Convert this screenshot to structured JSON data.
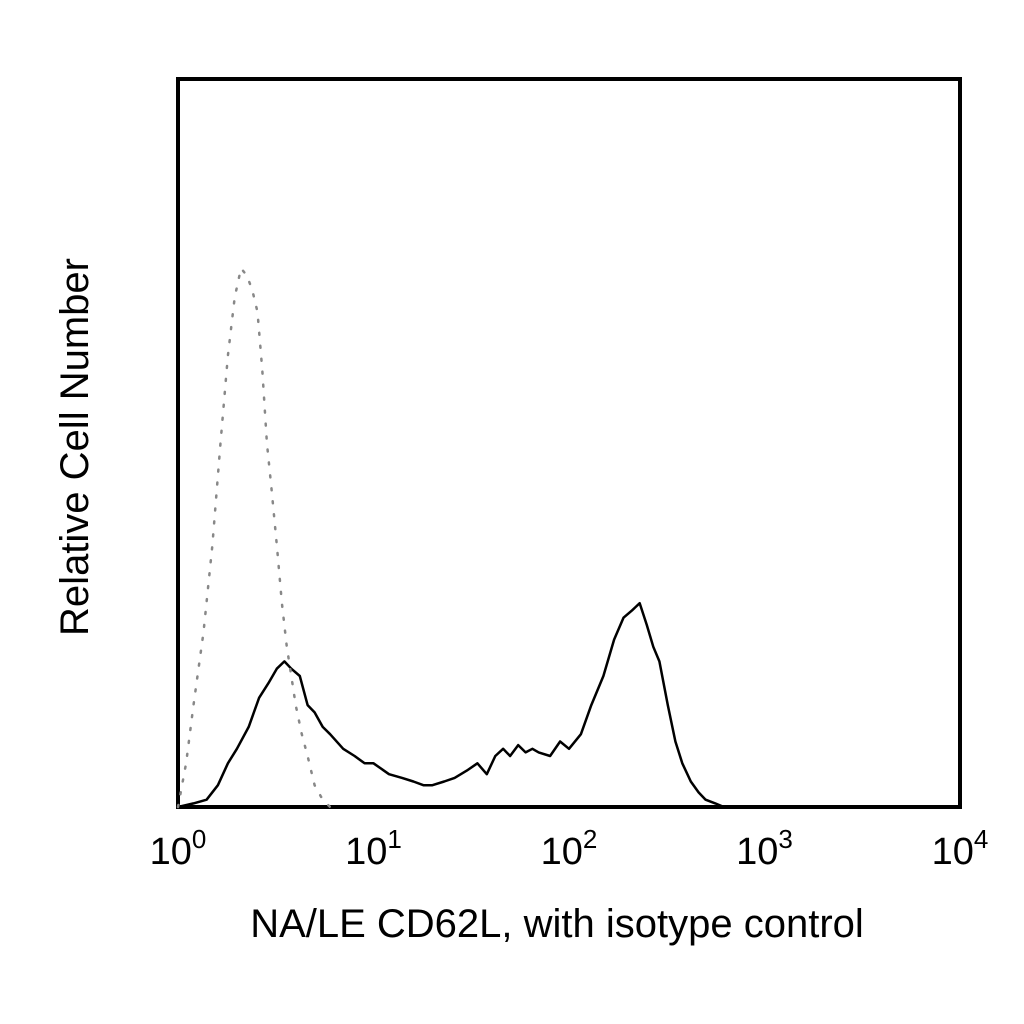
{
  "chart_data": {
    "type": "line",
    "xlabel": "NA/LE CD62L, with isotype control",
    "ylabel": "Relative Cell Number",
    "xscale": "log",
    "xlim": [
      1,
      10000
    ],
    "ylim": [
      0,
      100
    ],
    "grid": false,
    "legend": "none",
    "xticks": [
      {
        "base": "10",
        "exp": "0",
        "value": 1
      },
      {
        "base": "10",
        "exp": "1",
        "value": 10
      },
      {
        "base": "10",
        "exp": "2",
        "value": 100
      },
      {
        "base": "10",
        "exp": "3",
        "value": 1000
      },
      {
        "base": "10",
        "exp": "4",
        "value": 10000
      }
    ],
    "series": [
      {
        "style": "solid",
        "color": "#000000",
        "x": [
          1.0,
          1.2,
          1.4,
          1.6,
          1.8,
          2.0,
          2.3,
          2.6,
          2.9,
          3.2,
          3.5,
          3.8,
          4.2,
          4.6,
          5.0,
          5.5,
          6.0,
          7.0,
          8.0,
          9.0,
          10.0,
          12.0,
          14.0,
          16.0,
          18.0,
          20.0,
          23.0,
          26.0,
          30.0,
          34.0,
          38.0,
          42.0,
          46.0,
          50.0,
          55.0,
          60.0,
          65.0,
          70.0,
          80.0,
          90.0,
          100.0,
          115.0,
          130.0,
          150.0,
          170.0,
          190.0,
          210.0,
          230.0,
          250.0,
          270.0,
          290.0,
          320.0,
          350.0,
          380.0,
          420.0,
          460.0,
          500.0,
          560.0,
          620.0
        ],
        "y": [
          0.0,
          0.5,
          1.0,
          3.0,
          6.0,
          8.0,
          11.0,
          15.0,
          17.0,
          19.0,
          20.0,
          19.0,
          18.0,
          14.0,
          13.0,
          11.0,
          10.0,
          8.0,
          7.0,
          6.0,
          6.0,
          4.5,
          4.0,
          3.5,
          3.0,
          3.0,
          3.5,
          4.0,
          5.0,
          6.0,
          4.5,
          7.0,
          8.0,
          7.0,
          8.5,
          7.5,
          8.0,
          7.5,
          7.0,
          9.0,
          8.0,
          10.0,
          14.0,
          18.0,
          23.0,
          26.0,
          27.0,
          28.0,
          25.0,
          22.0,
          20.0,
          14.0,
          9.0,
          6.0,
          3.5,
          2.0,
          1.0,
          0.5,
          0.0
        ]
      },
      {
        "style": "dotted",
        "color": "#888888",
        "x": [
          1.0,
          1.1,
          1.2,
          1.35,
          1.5,
          1.65,
          1.8,
          1.95,
          2.1,
          2.25,
          2.4,
          2.55,
          2.7,
          2.85,
          3.0,
          3.2,
          3.4,
          3.6,
          3.8,
          4.0,
          4.3,
          4.6,
          5.0,
          5.5,
          6.0
        ],
        "y": [
          0.0,
          6.0,
          14.0,
          24.0,
          36.0,
          50.0,
          62.0,
          70.0,
          74.0,
          73.0,
          71.0,
          68.0,
          60.0,
          50.0,
          44.0,
          36.0,
          28.0,
          22.0,
          18.0,
          14.0,
          10.0,
          7.0,
          3.0,
          1.0,
          0.0
        ]
      }
    ]
  }
}
